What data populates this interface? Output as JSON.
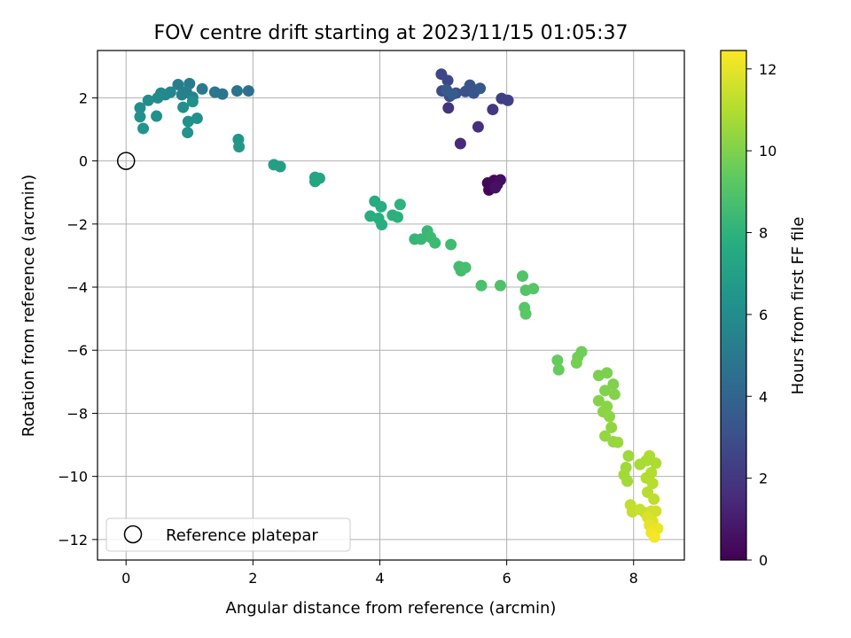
{
  "chart_data": {
    "type": "scatter",
    "title": "FOV centre drift starting at 2023/11/15 01:05:37",
    "xlabel": "Angular distance from reference (arcmin)",
    "ylabel": "Rotation from reference (arcmin)",
    "xlim": [
      -0.45,
      8.8
    ],
    "ylim": [
      -12.65,
      3.5
    ],
    "xticks": [
      0,
      2,
      4,
      6,
      8
    ],
    "yticks": [
      2,
      0,
      -2,
      -4,
      -6,
      -8,
      -10,
      -12
    ],
    "grid": true,
    "colorbar": {
      "label": "Hours from first FF file",
      "min": 0,
      "max": 12.45,
      "ticks": [
        0,
        2,
        4,
        6,
        8,
        10,
        12
      ],
      "colormap": "viridis"
    },
    "reference": {
      "x": 0,
      "y": 0,
      "marker": "open-circle",
      "label": "Reference platepar"
    },
    "legend": {
      "position": "lower-left",
      "entries": [
        "Reference platepar"
      ]
    },
    "points": [
      [
        5.72,
        -0.92,
        0.1
      ],
      [
        5.7,
        -0.7,
        0.2
      ],
      [
        5.8,
        -0.62,
        0.3
      ],
      [
        5.85,
        -0.75,
        0.4
      ],
      [
        5.9,
        -0.6,
        0.5
      ],
      [
        5.82,
        -0.85,
        0.6
      ],
      [
        5.27,
        0.55,
        1.5
      ],
      [
        5.55,
        1.08,
        1.7
      ],
      [
        5.08,
        1.68,
        1.9
      ],
      [
        5.78,
        1.63,
        2.0
      ],
      [
        5.92,
        1.98,
        2.3
      ],
      [
        6.02,
        1.92,
        2.4
      ],
      [
        4.97,
        2.75,
        2.6
      ],
      [
        5.07,
        2.55,
        2.7
      ],
      [
        4.98,
        2.22,
        2.8
      ],
      [
        5.1,
        2.05,
        2.9
      ],
      [
        5.2,
        2.15,
        3.0
      ],
      [
        5.35,
        2.2,
        3.1
      ],
      [
        5.42,
        2.4,
        3.2
      ],
      [
        5.48,
        2.15,
        3.3
      ],
      [
        5.58,
        2.3,
        3.4
      ],
      [
        5.05,
        2.25,
        3.5
      ],
      [
        5.15,
        2.12,
        3.6
      ],
      [
        1.93,
        2.22,
        4.6
      ],
      [
        1.75,
        2.22,
        4.7
      ],
      [
        1.52,
        2.12,
        4.8
      ],
      [
        1.4,
        2.18,
        4.9
      ],
      [
        1.2,
        2.28,
        5.0
      ],
      [
        1.0,
        2.45,
        5.1
      ],
      [
        0.82,
        2.42,
        5.2
      ],
      [
        0.95,
        2.2,
        5.3
      ],
      [
        0.88,
        2.1,
        5.4
      ],
      [
        1.05,
        2.02,
        5.5
      ],
      [
        0.7,
        2.18,
        5.6
      ],
      [
        0.62,
        2.1,
        5.7
      ],
      [
        0.55,
        2.15,
        5.8
      ],
      [
        0.5,
        2.0,
        5.9
      ],
      [
        0.35,
        1.92,
        6.0
      ],
      [
        0.22,
        1.68,
        6.0
      ],
      [
        0.9,
        1.7,
        6.1
      ],
      [
        1.05,
        1.88,
        6.1
      ],
      [
        0.22,
        1.4,
        6.2
      ],
      [
        0.48,
        1.42,
        6.2
      ],
      [
        1.12,
        1.35,
        6.3
      ],
      [
        0.98,
        1.25,
        6.3
      ],
      [
        0.27,
        1.03,
        6.4
      ],
      [
        0.97,
        0.9,
        6.4
      ],
      [
        1.77,
        0.68,
        6.5
      ],
      [
        1.78,
        0.45,
        6.6
      ],
      [
        2.33,
        -0.12,
        6.9
      ],
      [
        2.43,
        -0.18,
        7.0
      ],
      [
        2.98,
        -0.52,
        7.2
      ],
      [
        3.05,
        -0.55,
        7.3
      ],
      [
        2.98,
        -0.65,
        7.3
      ],
      [
        3.92,
        -1.28,
        7.6
      ],
      [
        4.02,
        -1.45,
        7.7
      ],
      [
        3.85,
        -1.75,
        7.7
      ],
      [
        3.98,
        -1.82,
        7.8
      ],
      [
        4.03,
        -2.02,
        7.8
      ],
      [
        4.2,
        -1.72,
        7.9
      ],
      [
        4.28,
        -1.78,
        7.9
      ],
      [
        4.32,
        -1.38,
        8.0
      ],
      [
        4.55,
        -2.48,
        8.2
      ],
      [
        4.65,
        -2.48,
        8.3
      ],
      [
        4.75,
        -2.22,
        8.3
      ],
      [
        4.8,
        -2.42,
        8.4
      ],
      [
        4.87,
        -2.6,
        8.4
      ],
      [
        5.12,
        -2.65,
        8.5
      ],
      [
        5.25,
        -3.35,
        8.6
      ],
      [
        5.28,
        -3.48,
        8.6
      ],
      [
        5.35,
        -3.38,
        8.7
      ],
      [
        5.6,
        -3.95,
        8.8
      ],
      [
        5.9,
        -3.95,
        8.9
      ],
      [
        6.25,
        -3.65,
        9.0
      ],
      [
        6.3,
        -4.1,
        9.0
      ],
      [
        6.42,
        -4.05,
        9.1
      ],
      [
        6.28,
        -4.65,
        9.1
      ],
      [
        6.3,
        -4.85,
        9.2
      ],
      [
        6.8,
        -6.32,
        9.5
      ],
      [
        6.82,
        -6.62,
        9.5
      ],
      [
        7.12,
        -6.22,
        9.7
      ],
      [
        7.18,
        -6.05,
        9.7
      ],
      [
        7.1,
        -6.4,
        9.8
      ],
      [
        7.45,
        -6.8,
        9.9
      ],
      [
        7.58,
        -6.72,
        9.9
      ],
      [
        7.68,
        -7.08,
        10.0
      ],
      [
        7.55,
        -7.28,
        10.0
      ],
      [
        7.7,
        -7.4,
        10.1
      ],
      [
        7.45,
        -7.6,
        10.1
      ],
      [
        7.58,
        -7.78,
        10.2
      ],
      [
        7.52,
        -7.95,
        10.2
      ],
      [
        7.62,
        -8.1,
        10.3
      ],
      [
        7.65,
        -8.45,
        10.3
      ],
      [
        7.55,
        -8.72,
        10.4
      ],
      [
        7.68,
        -8.9,
        10.4
      ],
      [
        7.75,
        -8.92,
        10.5
      ],
      [
        7.92,
        -9.35,
        10.6
      ],
      [
        7.88,
        -9.72,
        10.6
      ],
      [
        7.85,
        -9.95,
        10.7
      ],
      [
        7.9,
        -10.15,
        10.7
      ],
      [
        8.1,
        -9.62,
        10.8
      ],
      [
        8.2,
        -9.5,
        10.8
      ],
      [
        8.25,
        -9.35,
        10.9
      ],
      [
        8.35,
        -9.58,
        10.9
      ],
      [
        8.28,
        -9.88,
        11.0
      ],
      [
        8.2,
        -10.05,
        11.0
      ],
      [
        8.3,
        -10.22,
        11.1
      ],
      [
        8.22,
        -10.5,
        11.1
      ],
      [
        8.32,
        -10.72,
        11.2
      ],
      [
        7.95,
        -10.9,
        11.3
      ],
      [
        7.98,
        -11.12,
        11.3
      ],
      [
        8.1,
        -11.05,
        11.4
      ],
      [
        8.18,
        -11.15,
        11.4
      ],
      [
        8.28,
        -11.1,
        11.6
      ],
      [
        8.35,
        -11.1,
        11.6
      ],
      [
        8.22,
        -11.3,
        11.8
      ],
      [
        8.3,
        -11.42,
        11.8
      ],
      [
        8.25,
        -11.55,
        12.0
      ],
      [
        8.38,
        -11.65,
        12.1
      ],
      [
        8.28,
        -11.78,
        12.2
      ],
      [
        8.33,
        -11.92,
        12.3
      ]
    ]
  }
}
